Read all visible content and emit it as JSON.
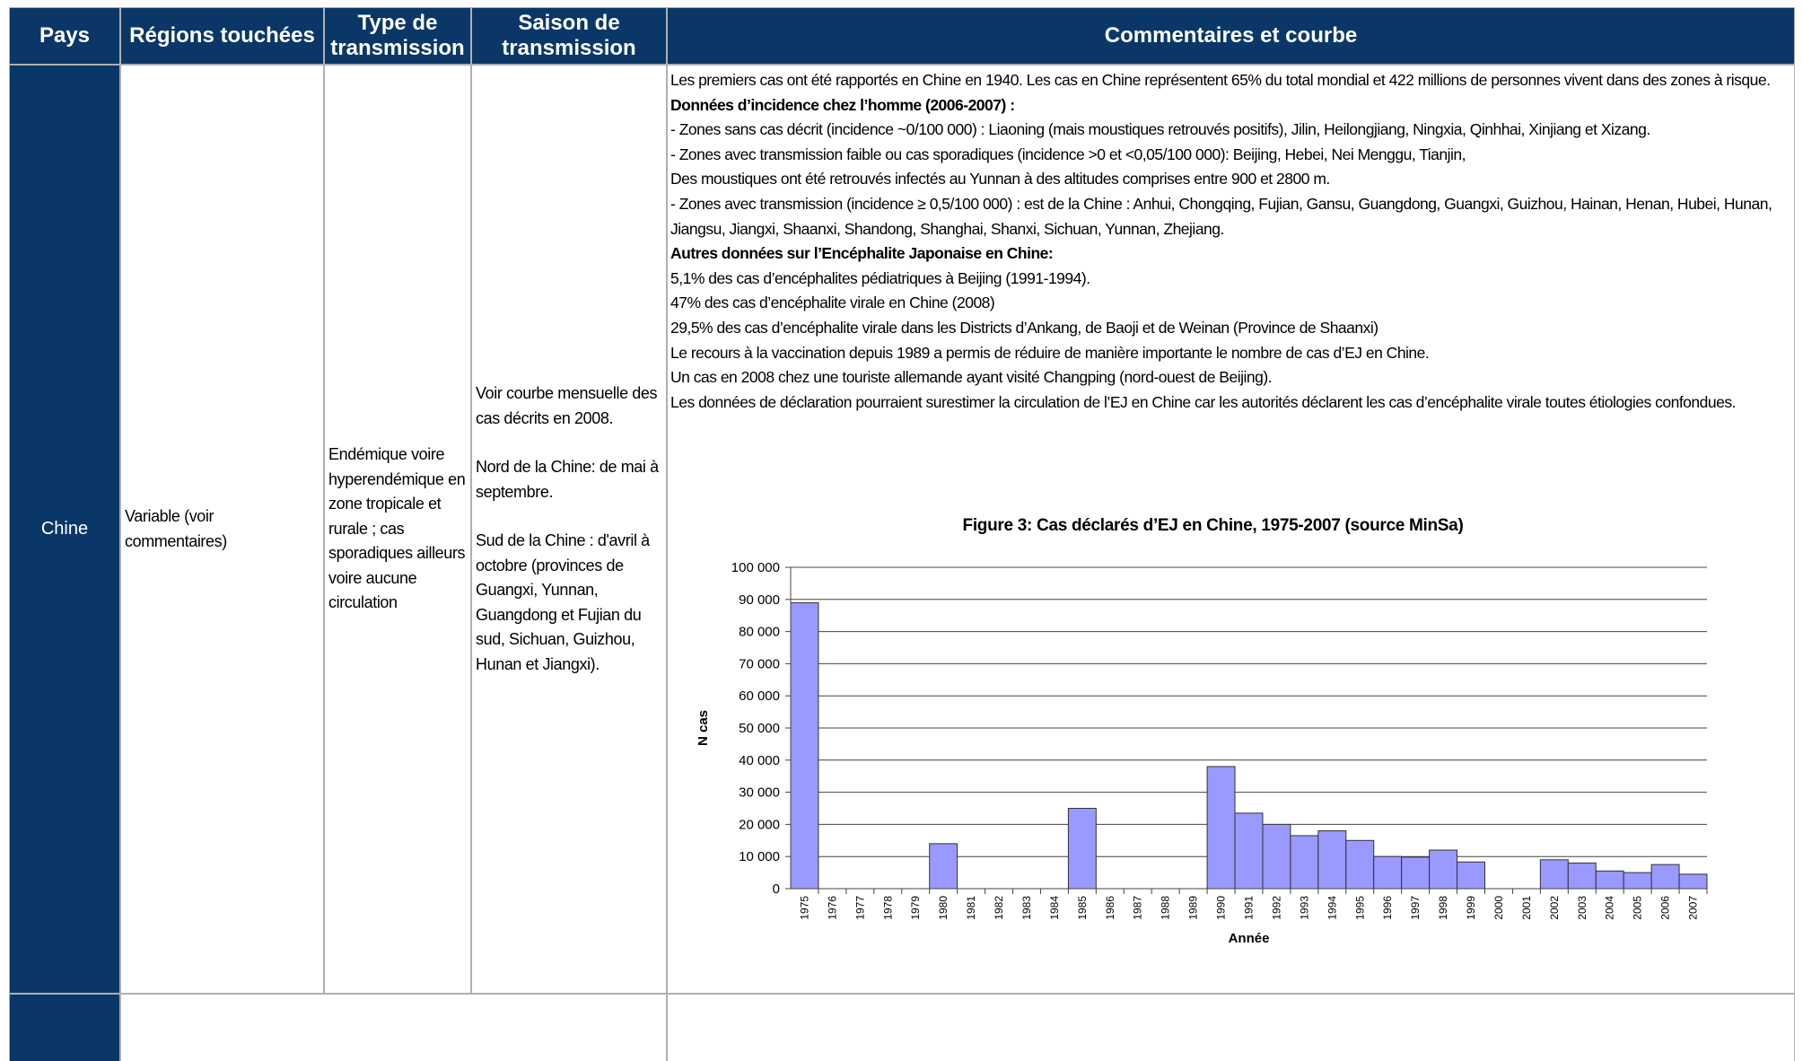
{
  "table": {
    "headers": [
      "Pays",
      "Régions touchées",
      "Type de transmission",
      "Saison de transmission",
      "Commentaires et courbe"
    ],
    "rows": [
      {
        "country": "Chine",
        "regions": "Variable (voir commentaires)",
        "transmission": "Endémique voire hyperendémique en zone tropicale et rurale ; cas sporadiques ailleurs voire aucune circulation",
        "season": [
          "Voir courbe mensuelle des cas décrits en 2008.",
          "Nord de la Chine: de mai à septembre.",
          "Sud de la Chine : d'avril à octobre (provinces de Guangxi, Yunnan, Guangdong et Fujian du sud, Sichuan, Guizhou, Hunan et Jiangxi)."
        ],
        "comments": [
          {
            "text": "Les premiers cas ont été rapportés en Chine en 1940. Les cas en Chine représentent 65% du total mondial et 422 millions de personnes vivent dans des zones à risque.",
            "bold": false
          },
          {
            "text": "Données d’incidence chez l’homme (2006-2007) :",
            "bold": true
          },
          {
            "text": "- Zones sans cas décrit (incidence ~0/100 000) : Liaoning (mais moustiques retrouvés positifs), Jilin, Heilongjiang, Ningxia, Qinhhai, Xinjiang et Xizang.",
            "bold": false
          },
          {
            "text": "- Zones avec transmission faible ou cas sporadiques (incidence >0 et <0,05/100 000): Beijing, Hebei, Nei Menggu, Tianjin,",
            "bold": false
          },
          {
            "text": "Des moustiques ont été retrouvés infectés au Yunnan à des altitudes comprises entre 900 et 2800 m.",
            "bold": false
          },
          {
            "text": "- Zones avec transmission (incidence ≥ 0,5/100 000) : est de la Chine : Anhui, Chongqing, Fujian, Gansu, Guangdong, Guangxi, Guizhou, Hainan, Henan, Hubei, Hunan, Jiangsu, Jiangxi, Shaanxi, Shandong, Shanghai, Shanxi, Sichuan, Yunnan, Zhejiang.",
            "bold": false
          },
          {
            "text": "Autres données sur l’Encéphalite Japonaise en Chine:",
            "bold": true
          },
          {
            "text": "5,1% des cas d’encéphalites pédiatriques à Beijing (1991-1994).",
            "bold": false
          },
          {
            "text": "47% des cas d’encéphalite virale en Chine (2008)",
            "bold": false
          },
          {
            "text": "29,5% des cas d’encéphalite virale dans les Districts d’Ankang, de Baoji et de Weinan (Province de Shaanxi)",
            "bold": false
          },
          {
            "text": "Le recours à la vaccination depuis 1989 a permis de réduire de manière importante le nombre de cas d’EJ en Chine.",
            "bold": false
          },
          {
            "text": "Un cas en 2008 chez une touriste allemande ayant visité Changping (nord-ouest de Beijing).",
            "bold": false
          },
          {
            "text": "Les données de déclaration pourraient surestimer la circulation de l’EJ en Chine car les autorités déclarent les cas d’encéphalite virale toutes étiologies confondues.",
            "bold": false
          }
        ]
      }
    ]
  },
  "chart_data": {
    "type": "bar",
    "title": "Figure 3: Cas déclarés d’EJ en Chine, 1975-2007 (source MinSa)",
    "x_label": "Année",
    "y_label": "N cas",
    "color": "#9999ff",
    "grid": true,
    "categories": [
      "1975",
      "1976",
      "1977",
      "1978",
      "1979",
      "1980",
      "1981",
      "1982",
      "1983",
      "1984",
      "1985",
      "1986",
      "1987",
      "1988",
      "1989",
      "1990",
      "1991",
      "1992",
      "1993",
      "1994",
      "1995",
      "1996",
      "1997",
      "1998",
      "1999",
      "2000",
      "2001",
      "2002",
      "2003",
      "2004",
      "2005",
      "2006",
      "2007"
    ],
    "values": [
      89000,
      null,
      null,
      null,
      null,
      14000,
      null,
      null,
      null,
      null,
      25000,
      null,
      null,
      null,
      null,
      38000,
      23500,
      20000,
      16500,
      18000,
      15000,
      10000,
      9800,
      12000,
      8300,
      null,
      null,
      9000,
      8000,
      5500,
      5000,
      7500,
      4500
    ],
    "ylim": [
      0,
      100000
    ],
    "yticks": [
      0,
      {
        "value": 10000,
        "label": "10 000"
      },
      {
        "value": 20000,
        "label": "20 000"
      },
      {
        "value": 30000,
        "label": "30 000"
      },
      {
        "value": 40000,
        "label": "40 000"
      },
      {
        "value": 50000,
        "label": "50 000"
      },
      {
        "value": 60000,
        "label": "60 000"
      },
      {
        "value": 70000,
        "label": "70 000"
      },
      {
        "value": 80000,
        "label": "80 000"
      },
      {
        "value": 90000,
        "label": "90 000"
      },
      {
        "value": 100000,
        "label": "100 000"
      }
    ]
  }
}
